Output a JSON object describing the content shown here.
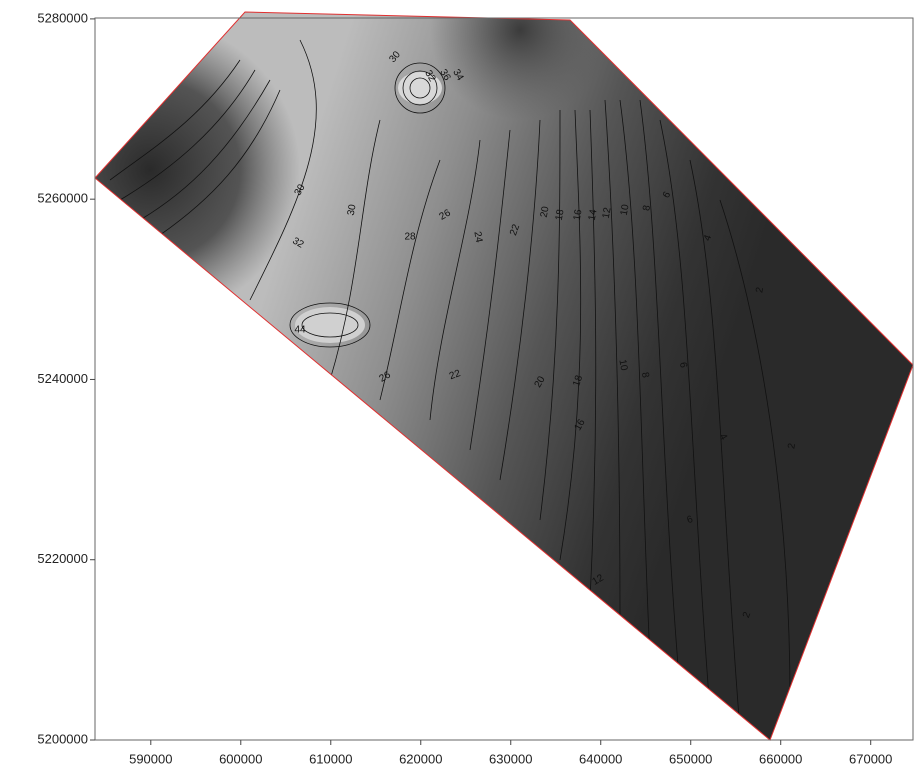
{
  "chart_data": {
    "type": "contour",
    "xlim": [
      583800,
      674700
    ],
    "ylim": [
      5200000,
      5280100
    ],
    "xticks": [
      590000,
      600000,
      610000,
      620000,
      630000,
      640000,
      650000,
      660000,
      670000
    ],
    "yticks": [
      5200000,
      5220000,
      5240000,
      5260000,
      5280000
    ],
    "contour_labels": [
      30,
      28,
      26,
      24,
      22,
      20,
      18,
      16,
      14,
      12,
      10,
      8,
      6,
      4,
      2,
      26,
      22,
      20,
      18,
      16,
      10,
      8,
      6,
      4,
      2,
      12,
      2,
      6,
      32,
      32,
      36,
      34,
      30,
      30,
      44
    ]
  }
}
